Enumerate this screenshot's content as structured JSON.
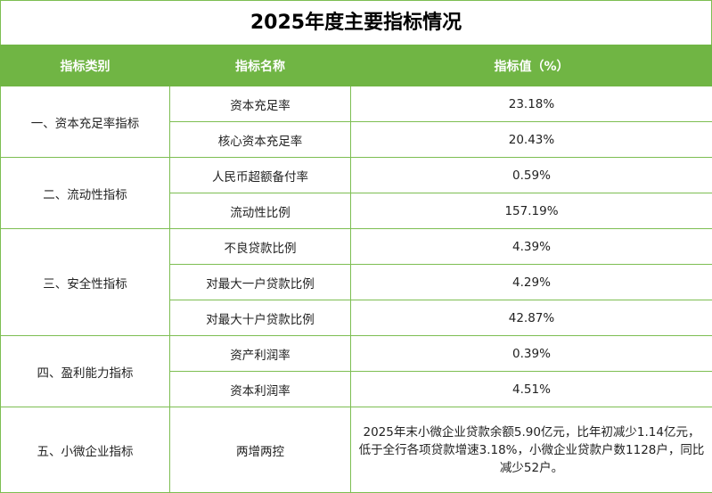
{
  "title": "2025年度主要指标情况",
  "colors": {
    "header_bg": "#70b544",
    "border": "#7dbe52"
  },
  "headers": [
    "指标类别",
    "指标名称",
    "指标值（%）"
  ],
  "groups": [
    {
      "category": "一、资本充足率指标",
      "items": [
        {
          "name": "资本充足率",
          "value": "23.18%"
        },
        {
          "name": "核心资本充足率",
          "value": "20.43%"
        }
      ]
    },
    {
      "category": "二、流动性指标",
      "items": [
        {
          "name": "人民币超额备付率",
          "value": "0.59%"
        },
        {
          "name": "流动性比例",
          "value": "157.19%"
        }
      ]
    },
    {
      "category": "三、安全性指标",
      "items": [
        {
          "name": "不良贷款比例",
          "value": "4.39%"
        },
        {
          "name": "对最大一户贷款比例",
          "value": "4.29%"
        },
        {
          "name": "对最大十户贷款比例",
          "value": "42.87%"
        }
      ]
    },
    {
      "category": "四、盈利能力指标",
      "items": [
        {
          "name": "资产利润率",
          "value": "0.39%"
        },
        {
          "name": "资本利润率",
          "value": "4.51%"
        }
      ]
    },
    {
      "category": "五、小微企业指标",
      "items": [
        {
          "name": "两增两控",
          "value": "2025年末小微企业贷款余额5.90亿元，比年初减少1.14亿元，低于全行各项贷款增速3.18%，小微企业贷款户数1128户，同比减少52户。"
        }
      ]
    }
  ]
}
